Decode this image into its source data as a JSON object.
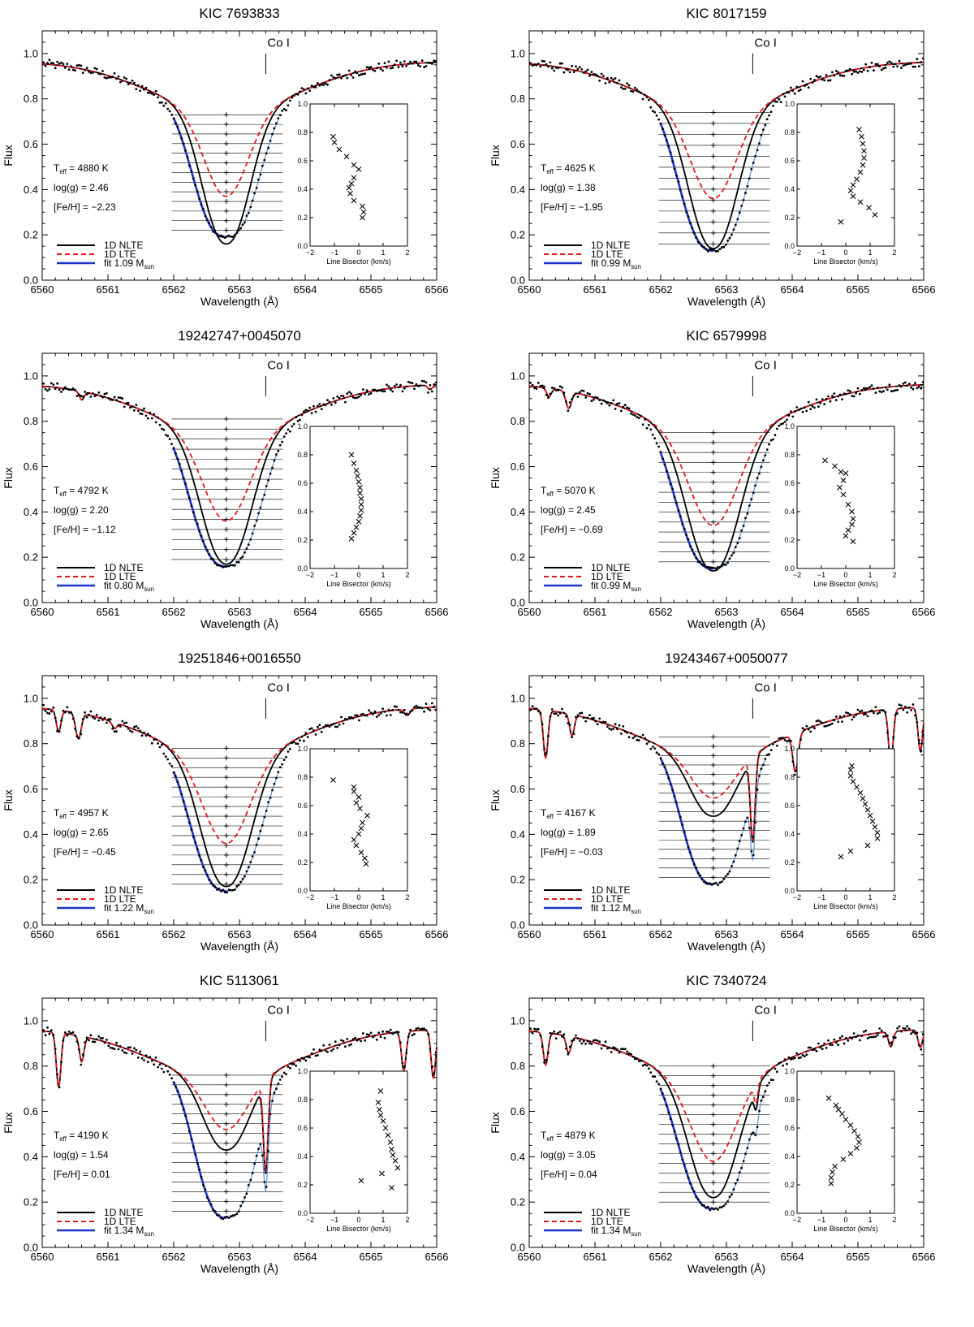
{
  "figure": {
    "xlabel": "Wavelength (Å)",
    "ylabel": "Flux",
    "line_marker_label": "Co I",
    "legend": {
      "nlte": "1D NLTE",
      "lte": "1D LTE",
      "fit_prefix": "fit",
      "fit_unit": "M",
      "fit_unit_sub": "sun"
    },
    "param_labels": {
      "teff": "T",
      "teff_sub": "eff",
      "logg": "log(g)",
      "feh": "[Fe/H]"
    },
    "inset_xlabel": "Line Bisector (km/s)",
    "colors": {
      "nlte": "#000000",
      "lte": "#e8141b",
      "fit_left": "#1c33c9",
      "fit_right": "#5b8fd6",
      "obs": "#000000"
    }
  },
  "chart_data": [
    {
      "type": "line",
      "title": "KIC 7693833",
      "xlabel": "Wavelength (Å)",
      "ylabel": "Flux",
      "xlim": [
        6560,
        6566
      ],
      "ylim": [
        0.0,
        1.1
      ],
      "xticks": [
        6560,
        6561,
        6562,
        6563,
        6564,
        6565,
        6566
      ],
      "yticks": [
        "0.0",
        "0.2",
        "0.4",
        "0.6",
        "0.8",
        "1.0"
      ],
      "params": {
        "teff": "4880 K",
        "logg": "2.46",
        "feh": "−2.23",
        "fit_mass": "1.09"
      },
      "line_core": 6562.8,
      "nlte_depth": 0.16,
      "lte_depth": 0.37,
      "obs_depth": 0.19,
      "width": 0.58,
      "bisector_top": 0.73,
      "bisector_levels": 13,
      "fit_range": [
        6562.0,
        6563.6
      ],
      "comp_lines": [],
      "inset": {
        "xlim": [
          -2,
          2
        ],
        "ylim": [
          0.0,
          1.0
        ],
        "xticks": [
          "−2",
          "−1",
          "0",
          "1",
          "2"
        ],
        "yticks": [
          "0.0",
          "0.2",
          "0.4",
          "0.6",
          "0.8",
          "1.0"
        ],
        "x": [
          0.15,
          0.2,
          0.15,
          -0.2,
          -0.35,
          -0.4,
          -0.3,
          -0.2,
          0.0,
          -0.2,
          -0.5,
          -0.8,
          -1.0,
          -1.05
        ],
        "y": [
          0.2,
          0.24,
          0.28,
          0.32,
          0.37,
          0.41,
          0.44,
          0.48,
          0.54,
          0.57,
          0.63,
          0.68,
          0.73,
          0.77
        ]
      }
    },
    {
      "type": "line",
      "title": "KIC 8017159",
      "xlabel": "Wavelength (Å)",
      "ylabel": "Flux",
      "xlim": [
        6560,
        6566
      ],
      "ylim": [
        0.0,
        1.1
      ],
      "xticks": [
        6560,
        6561,
        6562,
        6563,
        6564,
        6565,
        6566
      ],
      "yticks": [
        "0.0",
        "0.2",
        "0.4",
        "0.6",
        "0.8",
        "1.0"
      ],
      "params": {
        "teff": "4625 K",
        "logg": "1.38",
        "feh": "−1.95",
        "fit_mass": "0.99"
      },
      "line_core": 6562.8,
      "nlte_depth": 0.14,
      "lte_depth": 0.36,
      "obs_depth": 0.13,
      "width": 0.6,
      "bisector_top": 0.74,
      "bisector_levels": 13,
      "fit_range": [
        6562.0,
        6563.6
      ],
      "comp_lines": [],
      "inset": {
        "xlim": [
          -2,
          2
        ],
        "ylim": [
          0.0,
          1.0
        ],
        "xticks": [
          "−2",
          "−1",
          "0",
          "1",
          "2"
        ],
        "yticks": [
          "0.0",
          "0.2",
          "0.4",
          "0.6",
          "0.8",
          "1.0"
        ],
        "x": [
          -0.2,
          1.2,
          0.95,
          0.6,
          0.3,
          0.2,
          0.3,
          0.45,
          0.6,
          0.7,
          0.75,
          0.75,
          0.7,
          0.65,
          0.55
        ],
        "y": [
          0.17,
          0.22,
          0.27,
          0.31,
          0.35,
          0.39,
          0.43,
          0.47,
          0.52,
          0.57,
          0.62,
          0.67,
          0.72,
          0.77,
          0.82
        ]
      }
    },
    {
      "type": "line",
      "title": "19242747+0045070",
      "xlabel": "Wavelength (Å)",
      "ylabel": "Flux",
      "xlim": [
        6560,
        6566
      ],
      "ylim": [
        0.0,
        1.1
      ],
      "xticks": [
        6560,
        6561,
        6562,
        6563,
        6564,
        6565,
        6566
      ],
      "yticks": [
        "0.0",
        "0.2",
        "0.4",
        "0.6",
        "0.8",
        "1.0"
      ],
      "params": {
        "teff": "4792 K",
        "logg": "2.20",
        "feh": "−1.12",
        "fit_mass": "0.80"
      },
      "line_core": 6562.8,
      "nlte_depth": 0.17,
      "lte_depth": 0.36,
      "obs_depth": 0.16,
      "width": 0.62,
      "bisector_top": 0.81,
      "bisector_levels": 15,
      "fit_range": [
        6562.0,
        6563.6
      ],
      "comp_lines": [
        {
          "w": 6560.6,
          "d": 0.04,
          "s": 0.05
        },
        {
          "w": 6565.9,
          "d": 0.02,
          "s": 0.05
        }
      ],
      "inset": {
        "xlim": [
          -2,
          2
        ],
        "ylim": [
          0.0,
          1.0
        ],
        "xticks": [
          "−2",
          "−1",
          "0",
          "1",
          "2"
        ],
        "yticks": [
          "0.0",
          "0.2",
          "0.4",
          "0.6",
          "0.8",
          "1.0"
        ],
        "x": [
          -0.3,
          -0.2,
          -0.1,
          0.0,
          0.05,
          0.1,
          0.1,
          0.1,
          0.05,
          0.05,
          0.0,
          -0.05,
          -0.1,
          -0.2,
          -0.3
        ],
        "y": [
          0.21,
          0.25,
          0.29,
          0.33,
          0.37,
          0.41,
          0.45,
          0.49,
          0.53,
          0.57,
          0.61,
          0.65,
          0.69,
          0.74,
          0.8
        ]
      }
    },
    {
      "type": "line",
      "title": "KIC 6579998",
      "xlabel": "Wavelength (Å)",
      "ylabel": "Flux",
      "xlim": [
        6560,
        6566
      ],
      "ylim": [
        0.0,
        1.1
      ],
      "xticks": [
        6560,
        6561,
        6562,
        6563,
        6564,
        6565,
        6566
      ],
      "yticks": [
        "0.0",
        "0.2",
        "0.4",
        "0.6",
        "0.8",
        "1.0"
      ],
      "params": {
        "teff": "5070 K",
        "logg": "2.45",
        "feh": "−0.69",
        "fit_mass": "0.99"
      },
      "line_core": 6562.8,
      "nlte_depth": 0.14,
      "lte_depth": 0.34,
      "obs_depth": 0.15,
      "width": 0.64,
      "bisector_top": 0.75,
      "bisector_levels": 14,
      "fit_range": [
        6562.0,
        6563.6
      ],
      "comp_lines": [
        {
          "w": 6560.6,
          "d": 0.08,
          "s": 0.06
        },
        {
          "w": 6560.3,
          "d": 0.04,
          "s": 0.05
        }
      ],
      "inset": {
        "xlim": [
          -2,
          2
        ],
        "ylim": [
          0.0,
          1.0
        ],
        "xticks": [
          "−2",
          "−1",
          "0",
          "1",
          "2"
        ],
        "yticks": [
          "0.0",
          "0.2",
          "0.4",
          "0.6",
          "0.8",
          "1.0"
        ],
        "x": [
          0.3,
          0.0,
          0.1,
          0.25,
          0.3,
          0.25,
          0.1,
          -0.1,
          -0.25,
          -0.1,
          0.0,
          -0.2,
          -0.45,
          -0.85
        ],
        "y": [
          0.19,
          0.23,
          0.27,
          0.31,
          0.35,
          0.4,
          0.45,
          0.52,
          0.57,
          0.62,
          0.67,
          0.68,
          0.72,
          0.76
        ]
      }
    },
    {
      "type": "line",
      "title": "19251846+0016550",
      "xlabel": "Wavelength (Å)",
      "ylabel": "Flux",
      "xlim": [
        6560,
        6566
      ],
      "ylim": [
        0.0,
        1.1
      ],
      "xticks": [
        6560,
        6561,
        6562,
        6563,
        6564,
        6565,
        6566
      ],
      "yticks": [
        "0.0",
        "0.2",
        "0.4",
        "0.6",
        "0.8",
        "1.0"
      ],
      "params": {
        "teff": "4957 K",
        "logg": "2.65",
        "feh": "−0.45",
        "fit_mass": "1.22"
      },
      "line_core": 6562.8,
      "nlte_depth": 0.17,
      "lte_depth": 0.36,
      "obs_depth": 0.15,
      "width": 0.62,
      "bisector_top": 0.78,
      "bisector_levels": 15,
      "fit_range": [
        6562.0,
        6563.6
      ],
      "comp_lines": [
        {
          "w": 6560.25,
          "d": 0.1,
          "s": 0.05
        },
        {
          "w": 6560.55,
          "d": 0.12,
          "s": 0.06
        },
        {
          "w": 6561.1,
          "d": 0.03,
          "s": 0.05
        },
        {
          "w": 6565.55,
          "d": 0.03,
          "s": 0.06
        }
      ],
      "inset": {
        "xlim": [
          -2,
          2
        ],
        "ylim": [
          0.0,
          1.0
        ],
        "xticks": [
          "−2",
          "−1",
          "0",
          "1",
          "2"
        ],
        "yticks": [
          "0.0",
          "0.2",
          "0.4",
          "0.6",
          "0.8",
          "1.0"
        ],
        "x": [
          0.3,
          0.25,
          0.1,
          -0.1,
          -0.2,
          0.0,
          0.1,
          0.15,
          0.35,
          0.05,
          -0.1,
          0.0,
          -0.2,
          -0.2,
          -1.05
        ],
        "y": [
          0.19,
          0.23,
          0.27,
          0.32,
          0.36,
          0.4,
          0.44,
          0.48,
          0.53,
          0.58,
          0.62,
          0.66,
          0.7,
          0.73,
          0.78
        ]
      }
    },
    {
      "type": "line",
      "title": "19243467+0050077",
      "xlabel": "Wavelength (Å)",
      "ylabel": "Flux",
      "xlim": [
        6560,
        6566
      ],
      "ylim": [
        0.0,
        1.1
      ],
      "xticks": [
        6560,
        6561,
        6562,
        6563,
        6564,
        6565,
        6566
      ],
      "yticks": [
        "0.0",
        "0.2",
        "0.4",
        "0.6",
        "0.8",
        "1.0"
      ],
      "params": {
        "teff": "4167 K",
        "logg": "1.89",
        "feh": "−0.03",
        "fit_mass": "1.12"
      },
      "line_core": 6562.8,
      "nlte_depth": 0.48,
      "lte_depth": 0.56,
      "obs_depth": 0.18,
      "width": 0.55,
      "bisector_top": 0.83,
      "bisector_levels": 16,
      "fit_range": [
        6562.0,
        6563.6
      ],
      "comp_lines": [
        {
          "w": 6560.25,
          "d": 0.22,
          "s": 0.05
        },
        {
          "w": 6560.65,
          "d": 0.1,
          "s": 0.05
        },
        {
          "w": 6563.4,
          "d": 0.5,
          "s": 0.05
        },
        {
          "w": 6564.05,
          "d": 0.2,
          "s": 0.06
        },
        {
          "w": 6565.5,
          "d": 0.25,
          "s": 0.05
        },
        {
          "w": 6565.95,
          "d": 0.2,
          "s": 0.05
        }
      ],
      "inset": {
        "xlim": [
          -2,
          2
        ],
        "ylim": [
          0.0,
          1.0
        ],
        "xticks": [
          "−2",
          "−1",
          "0",
          "1",
          "2"
        ],
        "yticks": [
          "0.0",
          "0.2",
          "0.4",
          "0.6",
          "0.8",
          "1.0"
        ],
        "x": [
          -0.2,
          0.2,
          0.9,
          1.3,
          1.3,
          1.2,
          1.1,
          1.0,
          0.9,
          0.8,
          0.7,
          0.6,
          0.45,
          0.3,
          0.2,
          0.2,
          0.25
        ],
        "y": [
          0.24,
          0.28,
          0.32,
          0.37,
          0.41,
          0.45,
          0.49,
          0.53,
          0.57,
          0.61,
          0.65,
          0.69,
          0.73,
          0.77,
          0.81,
          0.85,
          0.88
        ]
      }
    },
    {
      "type": "line",
      "title": "KIC 5113061",
      "xlabel": "Wavelength (Å)",
      "ylabel": "Flux",
      "xlim": [
        6560,
        6566
      ],
      "ylim": [
        0.0,
        1.1
      ],
      "xticks": [
        6560,
        6561,
        6562,
        6563,
        6564,
        6565,
        6566
      ],
      "yticks": [
        "0.0",
        "0.2",
        "0.4",
        "0.6",
        "0.8",
        "1.0"
      ],
      "params": {
        "teff": "4190 K",
        "logg": "1.54",
        "feh": "0.01",
        "fit_mass": "1.34"
      },
      "line_core": 6562.8,
      "nlte_depth": 0.43,
      "lte_depth": 0.52,
      "obs_depth": 0.13,
      "width": 0.55,
      "bisector_top": 0.76,
      "bisector_levels": 15,
      "fit_range": [
        6562.0,
        6563.6
      ],
      "comp_lines": [
        {
          "w": 6560.25,
          "d": 0.25,
          "s": 0.05
        },
        {
          "w": 6560.6,
          "d": 0.12,
          "s": 0.05
        },
        {
          "w": 6563.4,
          "d": 0.55,
          "s": 0.05
        },
        {
          "w": 6565.5,
          "d": 0.18,
          "s": 0.05
        },
        {
          "w": 6565.95,
          "d": 0.22,
          "s": 0.05
        }
      ],
      "inset": {
        "xlim": [
          -2,
          2
        ],
        "ylim": [
          0.0,
          1.0
        ],
        "xticks": [
          "−2",
          "−1",
          "0",
          "1",
          "2"
        ],
        "yticks": [
          "0.0",
          "0.2",
          "0.4",
          "0.6",
          "0.8",
          "1.0"
        ],
        "x": [
          0.1,
          1.35,
          0.95,
          1.6,
          1.5,
          1.4,
          1.35,
          1.3,
          1.2,
          1.1,
          1.0,
          0.9,
          0.85,
          0.8,
          0.9
        ],
        "y": [
          0.23,
          0.18,
          0.28,
          0.32,
          0.37,
          0.41,
          0.45,
          0.5,
          0.55,
          0.6,
          0.65,
          0.69,
          0.73,
          0.78,
          0.86
        ]
      }
    },
    {
      "type": "line",
      "title": "KIC 7340724",
      "xlabel": "Wavelength (Å)",
      "ylabel": "Flux",
      "xlim": [
        6560,
        6566
      ],
      "ylim": [
        0.0,
        1.1
      ],
      "xticks": [
        6560,
        6561,
        6562,
        6563,
        6564,
        6565,
        6566
      ],
      "yticks": [
        "0.0",
        "0.2",
        "0.4",
        "0.6",
        "0.8",
        "1.0"
      ],
      "params": {
        "teff": "4879 K",
        "logg": "3.05",
        "feh": "0.04",
        "fit_mass": "1.34"
      },
      "line_core": 6562.8,
      "nlte_depth": 0.22,
      "lte_depth": 0.38,
      "obs_depth": 0.17,
      "width": 0.6,
      "bisector_top": 0.8,
      "bisector_levels": 15,
      "fit_range": [
        6562.0,
        6563.6
      ],
      "comp_lines": [
        {
          "w": 6560.25,
          "d": 0.15,
          "s": 0.05
        },
        {
          "w": 6560.6,
          "d": 0.08,
          "s": 0.05
        },
        {
          "w": 6563.45,
          "d": 0.12,
          "s": 0.04
        },
        {
          "w": 6565.5,
          "d": 0.07,
          "s": 0.05
        },
        {
          "w": 6565.95,
          "d": 0.08,
          "s": 0.05
        }
      ],
      "inset": {
        "xlim": [
          -2,
          2
        ],
        "ylim": [
          0.0,
          1.0
        ],
        "xticks": [
          "−2",
          "−1",
          "0",
          "1",
          "2"
        ],
        "yticks": [
          "0.0",
          "0.2",
          "0.4",
          "0.6",
          "0.8",
          "1.0"
        ],
        "x": [
          -0.6,
          -0.6,
          -0.55,
          -0.45,
          -0.1,
          0.2,
          0.45,
          0.55,
          0.5,
          0.35,
          0.2,
          0.0,
          -0.15,
          -0.3,
          -0.4,
          -0.7
        ],
        "y": [
          0.21,
          0.25,
          0.29,
          0.33,
          0.38,
          0.42,
          0.46,
          0.5,
          0.54,
          0.58,
          0.62,
          0.66,
          0.7,
          0.73,
          0.76,
          0.81
        ]
      }
    }
  ]
}
